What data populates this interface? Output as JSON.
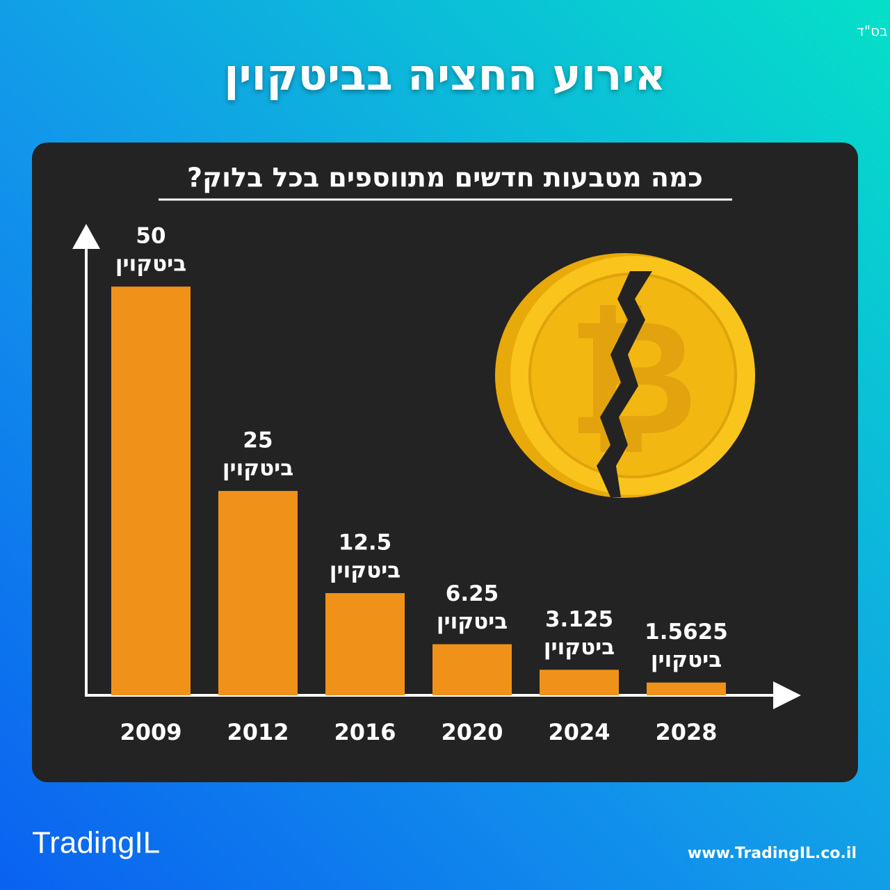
{
  "header": {
    "note": "בס\"ד",
    "title": "אירוע החציה בביטקוין"
  },
  "chart_data": {
    "type": "bar",
    "title": "כמה מטבעות חדשים מתווספים בכל בלוק?",
    "categories": [
      "2009",
      "2012",
      "2016",
      "2020",
      "2024",
      "2028"
    ],
    "values": [
      50,
      25,
      12.5,
      6.25,
      3.125,
      1.5625
    ],
    "unit": "ביטקוין",
    "color": "#f0921a",
    "ylim": [
      0,
      57.5
    ]
  },
  "footer": {
    "logo": "TradingIL",
    "url": "www.TradingIL.co.il"
  }
}
